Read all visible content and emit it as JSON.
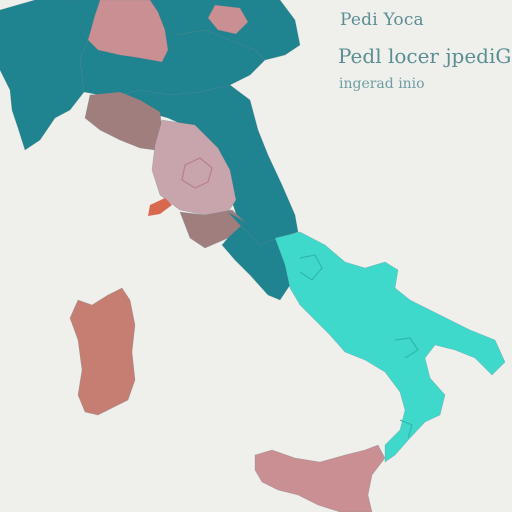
{
  "map": {
    "title": "Pedi Yoca",
    "subtitle": "Pedl locer jpediGio",
    "caption": "ingerad inio"
  },
  "colors": {
    "background": "#efefec",
    "teal": "#1f8390",
    "rose": "#c98f93",
    "dusty_mauve": "#a07e7e",
    "light_rose": "#c8a4ad",
    "terracotta": "#c67e73",
    "turquoise": "#3fd9cb",
    "text": "#5a8e93"
  }
}
